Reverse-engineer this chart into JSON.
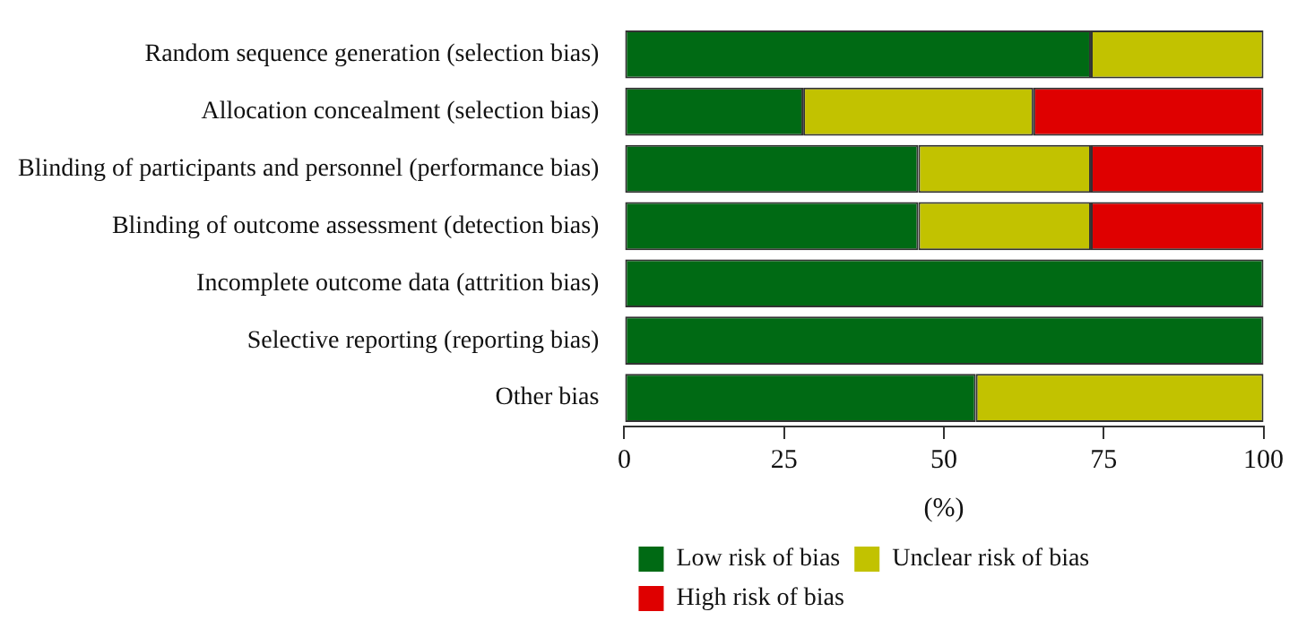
{
  "chart_data": {
    "type": "bar",
    "orientation": "horizontal",
    "stacked": true,
    "categories": [
      "Random sequence generation (selection bias)",
      "Allocation concealment (selection bias)",
      "Blinding of participants and personnel (performance bias)",
      "Blinding of outcome assessment (detection bias)",
      "Incomplete outcome data (attrition bias)",
      "Selective reporting (reporting bias)",
      "Other bias"
    ],
    "series": [
      {
        "name": "Low risk of bias",
        "color": "#006a14",
        "values": [
          73,
          28,
          46,
          46,
          100,
          100,
          55
        ]
      },
      {
        "name": "Unclear risk of bias",
        "color": "#c2c200",
        "values": [
          27,
          36,
          27,
          27,
          0,
          0,
          45
        ]
      },
      {
        "name": "High risk of bias",
        "color": "#df0000",
        "values": [
          0,
          36,
          27,
          27,
          0,
          0,
          0
        ]
      }
    ],
    "xlabel": "(%)",
    "xlim": [
      0,
      100
    ],
    "xticks": [
      0,
      25,
      50,
      75,
      100
    ],
    "grid": false,
    "legend": "bottom"
  }
}
